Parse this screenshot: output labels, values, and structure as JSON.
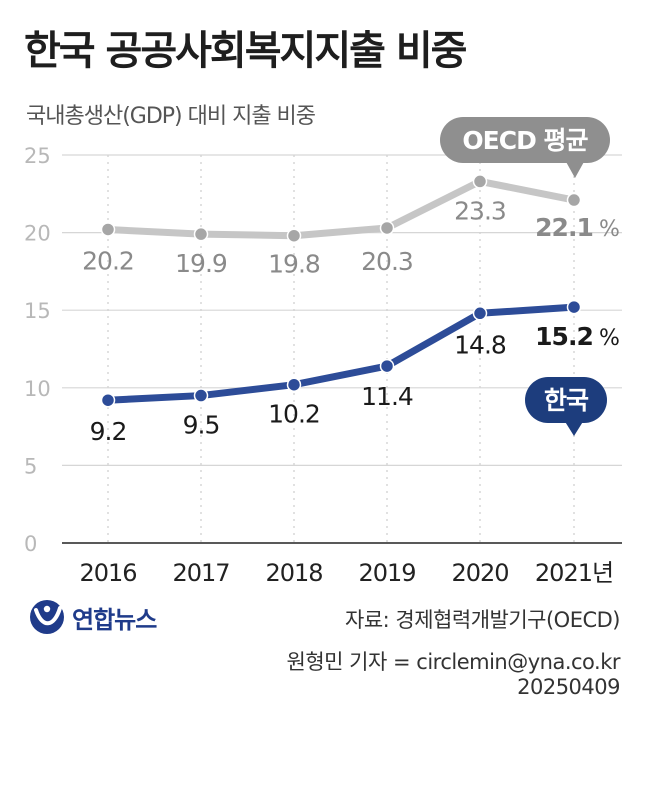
{
  "chart_data": {
    "type": "line",
    "title": "한국 공공사회복지지출 비중",
    "subtitle": "국내총생산(GDP) 대비 지출 비중",
    "categories": [
      "2016",
      "2017",
      "2018",
      "2019",
      "2020",
      "2021년"
    ],
    "x": [
      2016,
      2017,
      2018,
      2019,
      2020,
      2021
    ],
    "ylim": [
      0,
      25
    ],
    "yticks": [
      "0",
      "5",
      "10",
      "15",
      "20",
      "25"
    ],
    "grid": true,
    "series": [
      {
        "name": "OECD 평균",
        "values": [
          20.2,
          19.9,
          19.8,
          20.3,
          23.3,
          22.1
        ],
        "labels": [
          "20.2",
          "19.9",
          "19.8",
          "20.3",
          "23.3",
          "22.1"
        ],
        "last_unit": "%",
        "color": "#c6c6c6",
        "badge_color": "#8f8f8f"
      },
      {
        "name": "한국",
        "values": [
          9.2,
          9.5,
          10.2,
          11.4,
          14.8,
          15.2
        ],
        "labels": [
          "9.2",
          "9.5",
          "10.2",
          "11.4",
          "14.8",
          "15.2"
        ],
        "last_unit": "%",
        "color": "#2d4c98",
        "badge_color": "#1d3d7d"
      }
    ]
  },
  "footer": {
    "source": "자료: 경제협력개발기구(OECD)",
    "credit": "원형민 기자 = circlemin@yna.co.kr",
    "date": "20250409"
  },
  "logo": {
    "text": "연합뉴스",
    "icon": "yonhap-logo-icon",
    "color": "#1f3b8a"
  }
}
